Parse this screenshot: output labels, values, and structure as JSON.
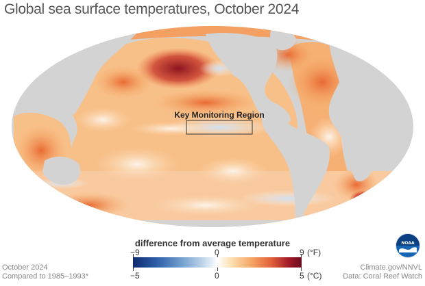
{
  "title": "Global sea surface temperatures, October 2024",
  "map": {
    "projection": "Mollweide",
    "land_color": "#d3d3d3",
    "annotation_box": {
      "label": "Key Monitoring Region"
    }
  },
  "legend": {
    "title": "difference from average temperature",
    "fahrenheit": {
      "ticks": [
        "−9",
        "0",
        "9"
      ],
      "unit": "(°F)"
    },
    "celsius": {
      "ticks": [
        "−5",
        "0",
        "5"
      ],
      "unit": "(°C)"
    },
    "colors": {
      "cold": "#0f2b6e",
      "neutral": "#ffffff",
      "warm": "#6a0b1e"
    }
  },
  "footer_left": {
    "line1": "October 2024",
    "line2": "Compared to 1985–1993*"
  },
  "footer_right": {
    "line1": "Climate.gov/NNVL",
    "line2": "Data: Coral Reef Watch"
  },
  "logo": {
    "text": "NOAA",
    "icon": "noaa-logo-icon"
  }
}
